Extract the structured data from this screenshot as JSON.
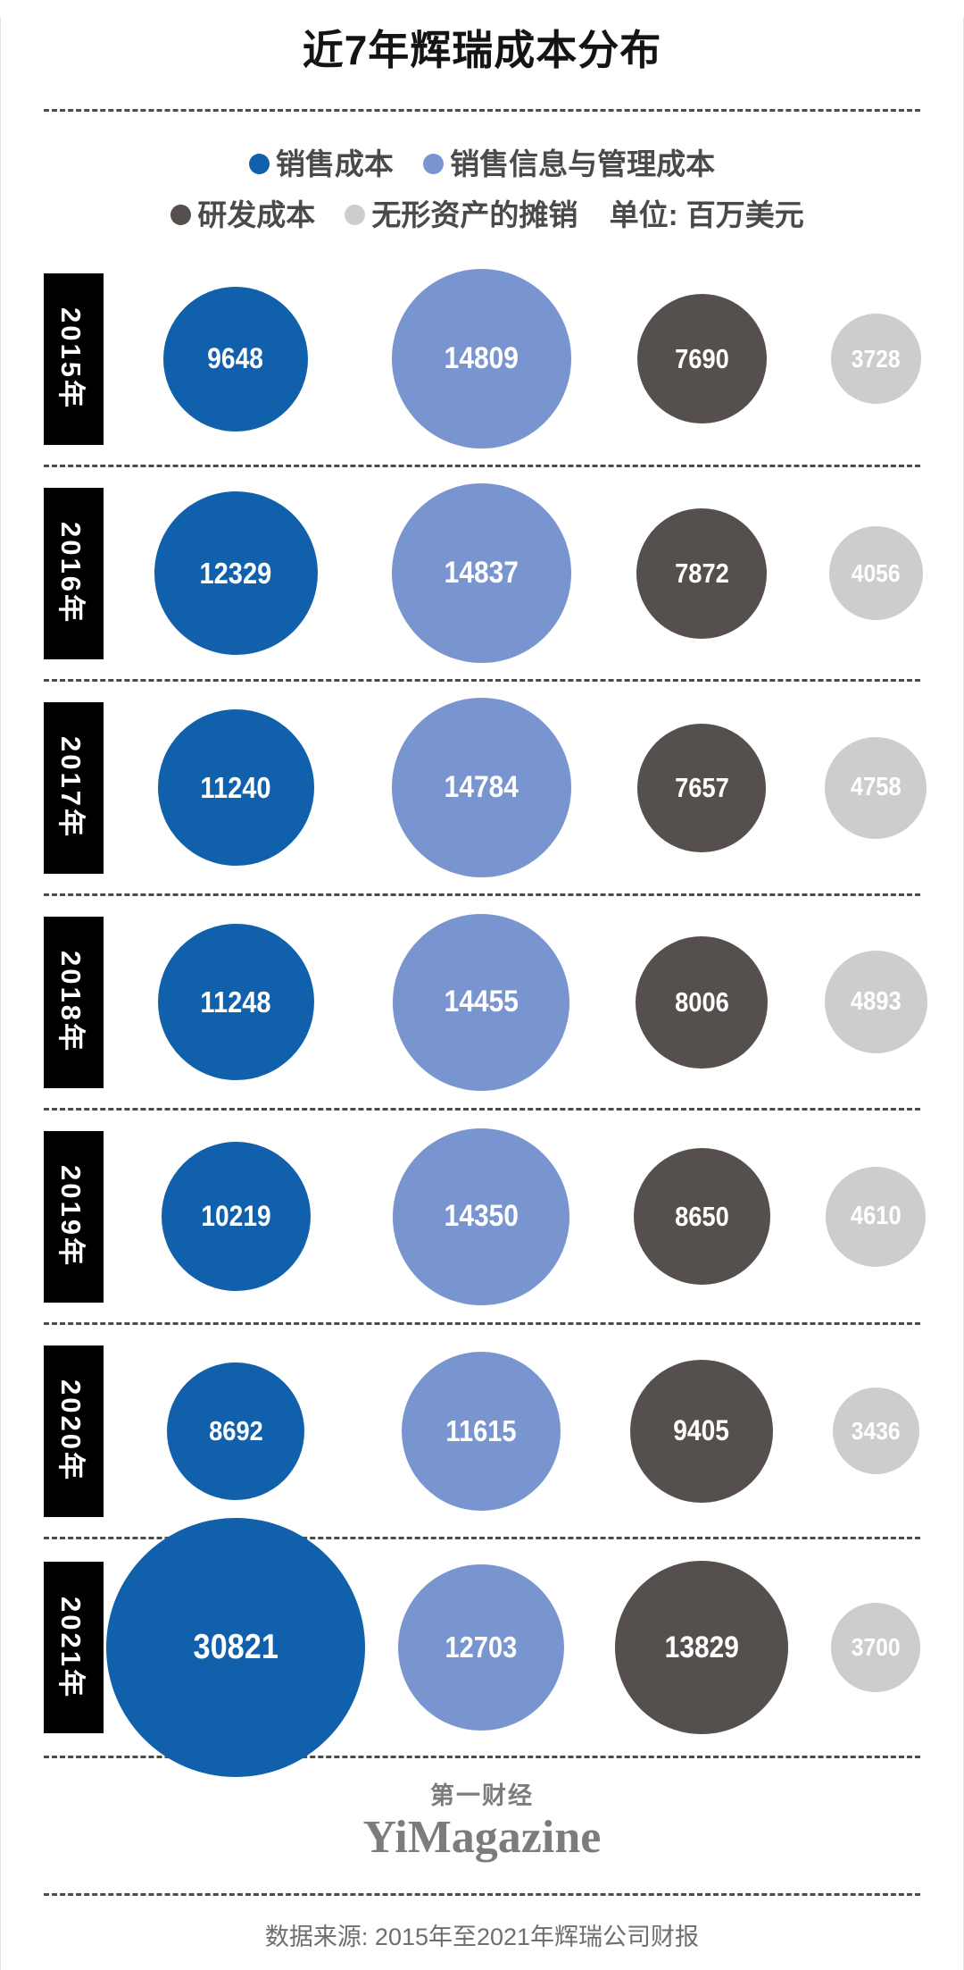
{
  "header": {
    "title": "近7年辉瑞成本分布"
  },
  "legend": {
    "items": [
      {
        "label": "销售成本",
        "color": "#1160ab"
      },
      {
        "label": "销售信息与管理成本",
        "color": "#7995d0"
      },
      {
        "label": "研发成本",
        "color": "#55504e"
      },
      {
        "label": "无形资产的摊销",
        "color": "#cccdce"
      }
    ],
    "unit_label": "单位: 百万美元"
  },
  "chart_data": {
    "type": "bubble",
    "title": "近7年辉瑞成本分布",
    "unit": "百万美元",
    "size_encoding": "diameter_px = 1.65 * sqrt(value)",
    "categories": [
      "2015年",
      "2016年",
      "2017年",
      "2018年",
      "2019年",
      "2020年",
      "2021年"
    ],
    "series": [
      {
        "name": "销售成本",
        "color": "#1160ab",
        "values": [
          9648,
          12329,
          11240,
          11248,
          10219,
          8692,
          30821
        ]
      },
      {
        "name": "销售信息与管理成本",
        "color": "#7995d0",
        "values": [
          14809,
          14837,
          14784,
          14455,
          14350,
          11615,
          12703
        ]
      },
      {
        "name": "研发成本",
        "color": "#55504e",
        "values": [
          7690,
          7872,
          7657,
          8006,
          8650,
          9405,
          13829
        ]
      },
      {
        "name": "无形资产的摊销",
        "color": "#cccdce",
        "values": [
          3728,
          4056,
          4758,
          4893,
          4610,
          3436,
          3700
        ]
      }
    ]
  },
  "footer": {
    "logo_cn": "第一财经",
    "logo_en": "YiMagazine",
    "source": "数据来源: 2015年至2021年辉瑞公司财报"
  }
}
